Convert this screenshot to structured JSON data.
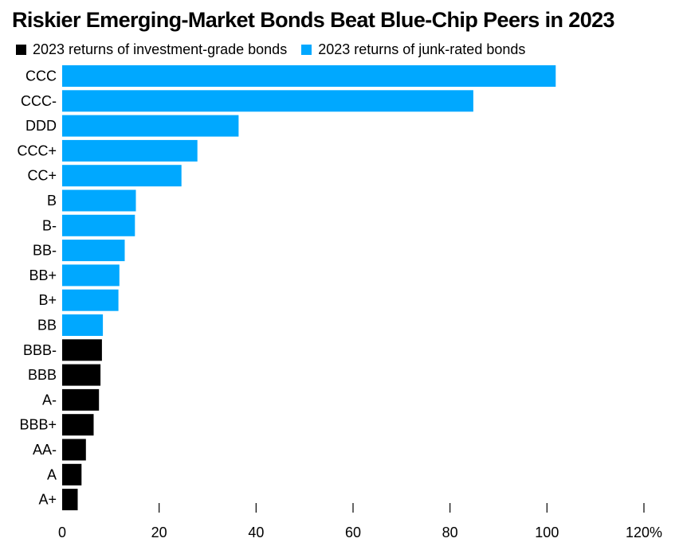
{
  "chart_data": {
    "type": "bar",
    "orientation": "horizontal",
    "title": "Riskier Emerging-Market Bonds Beat Blue-Chip Peers in 2023",
    "xlabel": "",
    "ylabel": "",
    "xlim": [
      0,
      120
    ],
    "ticks": [
      0,
      20,
      40,
      60,
      80,
      100,
      120
    ],
    "tick_labels": [
      "0",
      "20",
      "40",
      "60",
      "80",
      "100",
      "120%"
    ],
    "legend": [
      {
        "name": "2023 returns of investment-grade bonds",
        "color": "#000000"
      },
      {
        "name": "2023 returns of junk-rated bonds",
        "color": "#00a8ff"
      }
    ],
    "categories": [
      "CCC",
      "CCC-",
      "DDD",
      "CCC+",
      "CC+",
      "B",
      "B-",
      "BB-",
      "BB+",
      "B+",
      "BB",
      "BBB-",
      "BBB",
      "A-",
      "BBB+",
      "AA-",
      "A",
      "A+"
    ],
    "values": [
      101.8,
      84.8,
      36.4,
      27.9,
      24.6,
      15.2,
      15.0,
      12.9,
      11.8,
      11.6,
      8.4,
      8.2,
      7.9,
      7.6,
      6.5,
      4.9,
      4.0,
      3.2
    ],
    "groups": [
      "junk",
      "junk",
      "junk",
      "junk",
      "junk",
      "junk",
      "junk",
      "junk",
      "junk",
      "junk",
      "junk",
      "ig",
      "ig",
      "ig",
      "ig",
      "ig",
      "ig",
      "ig"
    ],
    "group_colors": {
      "junk": "#00a8ff",
      "ig": "#000000"
    }
  }
}
